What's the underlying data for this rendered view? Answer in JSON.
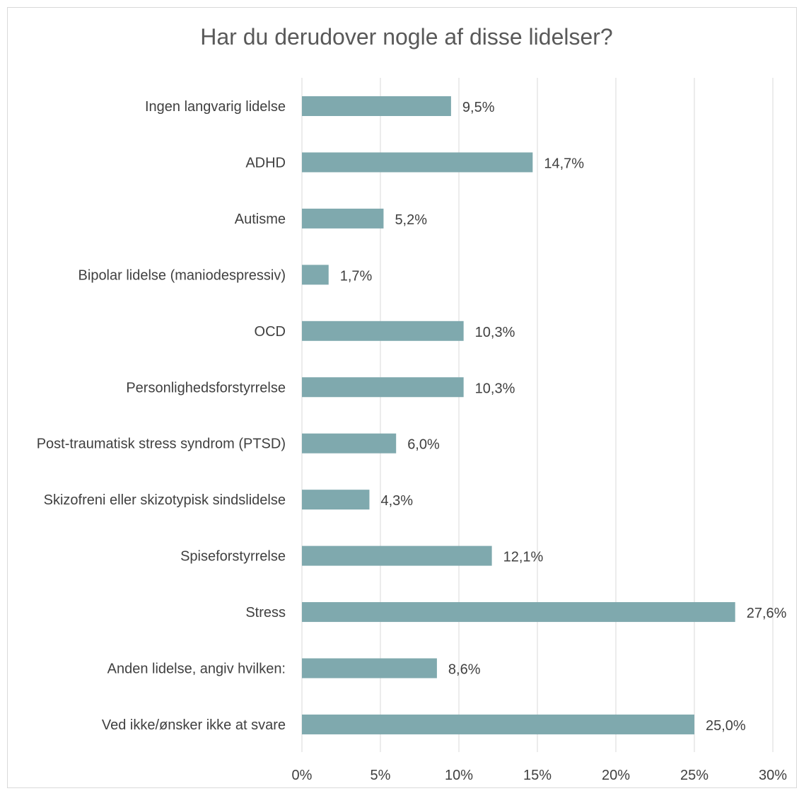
{
  "chart_data": {
    "type": "bar",
    "orientation": "horizontal",
    "title": "Har du derudover nogle af disse lidelser?",
    "categories": [
      "Ingen langvarig lidelse",
      "ADHD",
      "Autisme",
      "Bipolar lidelse (maniodespressiv)",
      "OCD",
      "Personlighedsforstyrrelse",
      "Post-traumatisk stress syndrom (PTSD)",
      "Skizofreni eller skizotypisk sindslidelse",
      "Spiseforstyrrelse",
      "Stress",
      "Anden lidelse, angiv hvilken:",
      "Ved ikke/ønsker ikke at svare"
    ],
    "values": [
      9.5,
      14.7,
      5.2,
      1.7,
      10.3,
      10.3,
      6.0,
      4.3,
      12.1,
      27.6,
      8.6,
      25.0
    ],
    "value_labels": [
      "9,5%",
      "14,7%",
      "5,2%",
      "1,7%",
      "10,3%",
      "10,3%",
      "6,0%",
      "4,3%",
      "12,1%",
      "27,6%",
      "8,6%",
      "25,0%"
    ],
    "xticks": [
      0,
      5,
      10,
      15,
      20,
      25,
      30
    ],
    "xtick_labels": [
      "0%",
      "5%",
      "10%",
      "15%",
      "20%",
      "25%",
      "30%"
    ],
    "xlim": [
      0,
      30
    ],
    "grid": "vertical",
    "bar_color": "#7fa9ae",
    "legend": "none"
  }
}
